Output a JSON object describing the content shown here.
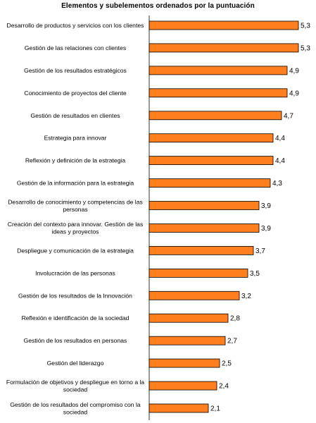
{
  "chart_data": {
    "type": "bar",
    "orientation": "horizontal",
    "title": "Elementos y subelementos ordenados por la puntuación",
    "xlabel": "",
    "ylabel": "",
    "xlim": [
      0,
      5.5
    ],
    "grid": false,
    "legend": "none",
    "bar_color": "#ff7f1e",
    "categories": [
      [
        "Desarrollo de  productos y servicios con los clientes"
      ],
      [
        "Gestión de las  relaciones con clientes"
      ],
      [
        "Gestión de los resultados estratégicos"
      ],
      [
        "Conocimiento de proyectos del cliente"
      ],
      [
        "Gestión de resultados en clientes"
      ],
      [
        "Estrategia para innovar"
      ],
      [
        "Reflexión y definición de la estrategia"
      ],
      [
        "Gestión de la información para la estrategia"
      ],
      [
        "Desarrollo de  conocimiento y competencias de las",
        "personas"
      ],
      [
        "Creación del contexto para innovar. Gestión de las",
        "ideas y proyectos"
      ],
      [
        "Despliegue y comunicación de la estrategia"
      ],
      [
        "Involucración de  las personas"
      ],
      [
        "Gestión de los resultados de la Innovación"
      ],
      [
        "Reflexión e identificación de la sociedad"
      ],
      [
        "Gestión de los resultados en personas"
      ],
      [
        "Gestión del liderazgo"
      ],
      [
        "Formulación de objetivos y despliegue en torno a la",
        "sociedad"
      ],
      [
        "Gestión de los resultados del compromiso con la",
        "sociedad"
      ]
    ],
    "values": [
      5.3,
      5.3,
      4.9,
      4.9,
      4.7,
      4.4,
      4.4,
      4.3,
      3.9,
      3.9,
      3.7,
      3.5,
      3.2,
      2.8,
      2.7,
      2.5,
      2.4,
      2.1
    ],
    "value_labels": [
      "5,3",
      "5,3",
      "4,9",
      "4,9",
      "4,7",
      "4,4",
      "4,4",
      "4,3",
      "3,9",
      "3,9",
      "3,7",
      "3,5",
      "3,2",
      "2,8",
      "2,7",
      "2,5",
      "2,4",
      "2,1"
    ]
  }
}
